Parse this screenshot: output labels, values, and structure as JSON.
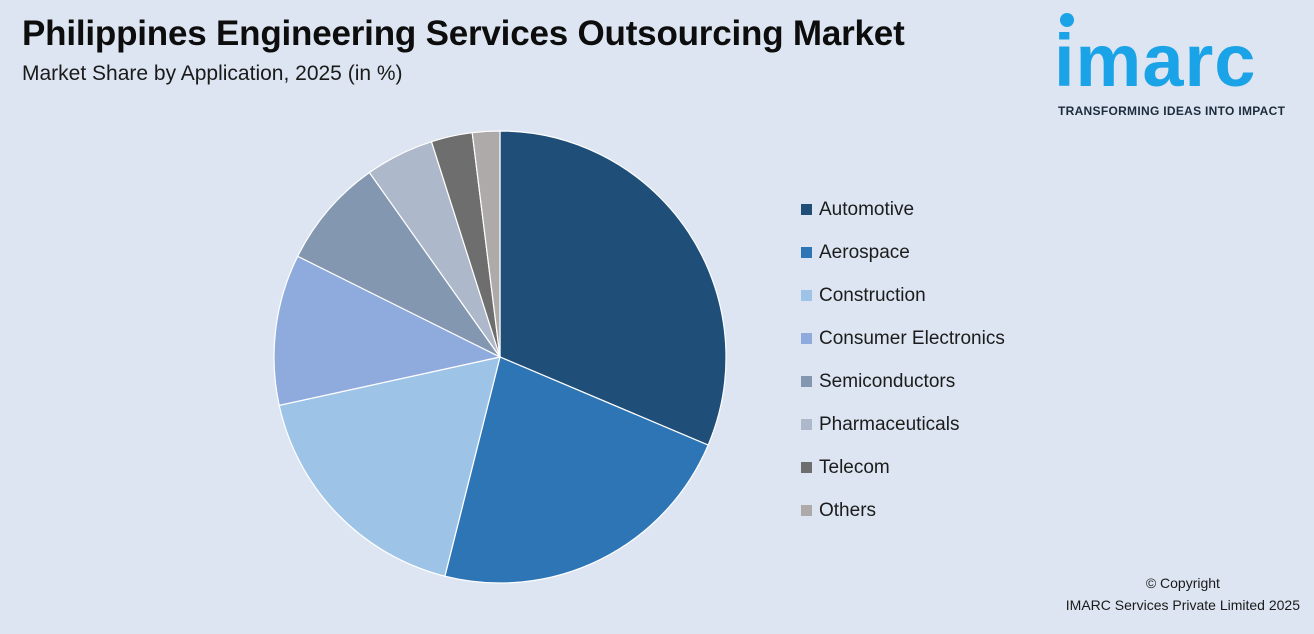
{
  "header": {
    "title": "Philippines Engineering Services Outsourcing Market",
    "subtitle": "Market Share by Application, 2025 (in %)"
  },
  "brand": {
    "logo_text": "imarc",
    "tagline": "TRANSFORMING IDEAS INTO IMPACT",
    "color": "#1aa3e6"
  },
  "footer": {
    "copyright_line1": "© Copyright",
    "copyright_line2": "IMARC Services Private Limited 2025"
  },
  "chart_data": {
    "type": "pie",
    "title": "Philippines Engineering Services Outsourcing Market",
    "subtitle": "Market Share by Application, 2025 (in %)",
    "start_angle_deg": 0,
    "direction": "clockwise",
    "legend_position": "right",
    "categories": [
      "Automotive",
      "Aerospace",
      "Construction",
      "Consumer Electronics",
      "Semiconductors",
      "Pharmaceuticals",
      "Telecom",
      "Others"
    ],
    "values": [
      32,
      23,
      18,
      11,
      8,
      5,
      3,
      2
    ],
    "colors": [
      "#1f4e79",
      "#2e75b6",
      "#9dc3e6",
      "#8faadc",
      "#8497b0",
      "#adb9ca",
      "#6e6e6e",
      "#aeaaaa"
    ]
  }
}
